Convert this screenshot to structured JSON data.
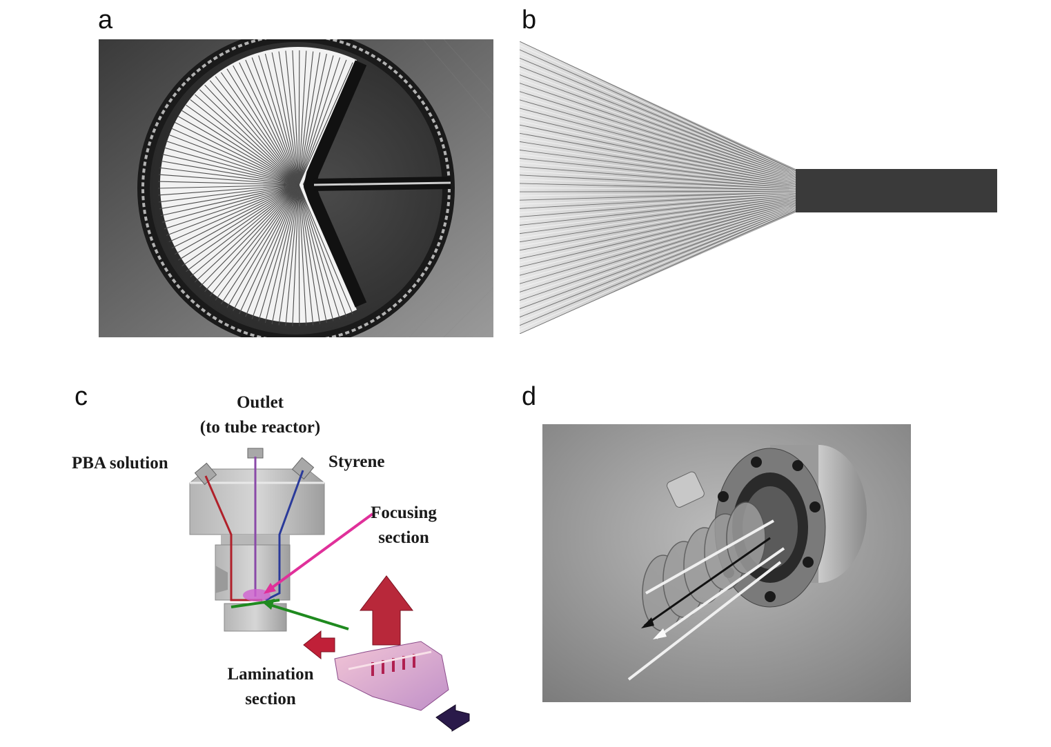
{
  "panels": {
    "a": {
      "letter": "a"
    },
    "b": {
      "letter": "b"
    },
    "c": {
      "letter": "c",
      "labels": {
        "outlet_line1": "Outlet",
        "outlet_line2": "(to tube reactor)",
        "pba": "PBA solution",
        "styrene": "Styrene",
        "focusing_line1": "Focusing",
        "focusing_line2": "section",
        "lamination_line1": "Lamination",
        "lamination_line2": "section"
      }
    },
    "d": {
      "letter": "d"
    }
  },
  "colors": {
    "pba_channel": "#b0202a",
    "outlet_channel": "#8a4aa8",
    "styrene_channel": "#2a3a9a",
    "focusing_arrow": "#e0309a",
    "lamination_arrow": "#1f8a1f",
    "flow_arrow_red": "#b8283a",
    "flow_arrow_dark": "#2a1a4a"
  }
}
